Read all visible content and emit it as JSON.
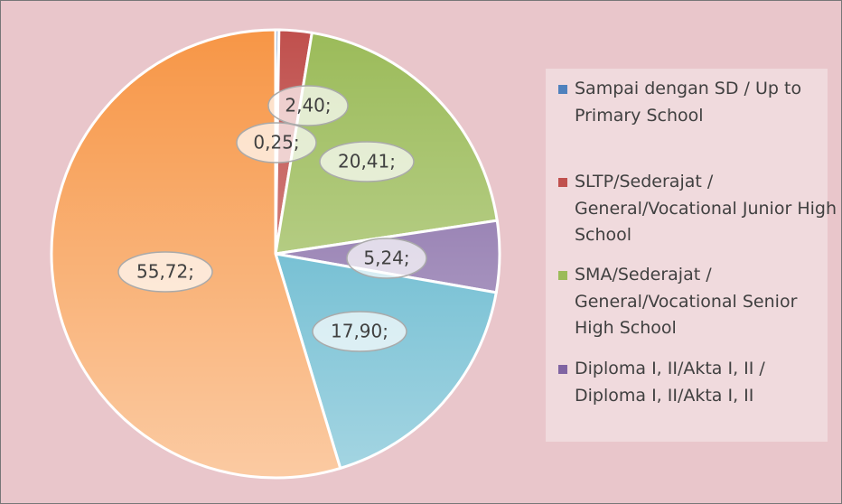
{
  "chart_data": {
    "type": "pie",
    "categories": [
      "Sampai dengan SD / Up to Primary School",
      "SLTP/Sederajat / General/Vocational Junior High School",
      "SMA/Sederajat / General/Vocational Senior High School",
      "Diploma I, II/Akta I, II / Diploma I, II/Akta I, II",
      null,
      null
    ],
    "values": [
      0.25,
      2.4,
      20.41,
      5.24,
      17.9,
      55.72
    ],
    "value_labels": [
      "0,25;",
      "2,40;",
      "20,41;",
      "5,24;",
      "17,90;",
      "55,72;"
    ],
    "colors": [
      "#4f81bd",
      "#c0504d",
      "#9bbb59",
      "#8064a2",
      "#4bacc6",
      "#f79646"
    ]
  }
}
